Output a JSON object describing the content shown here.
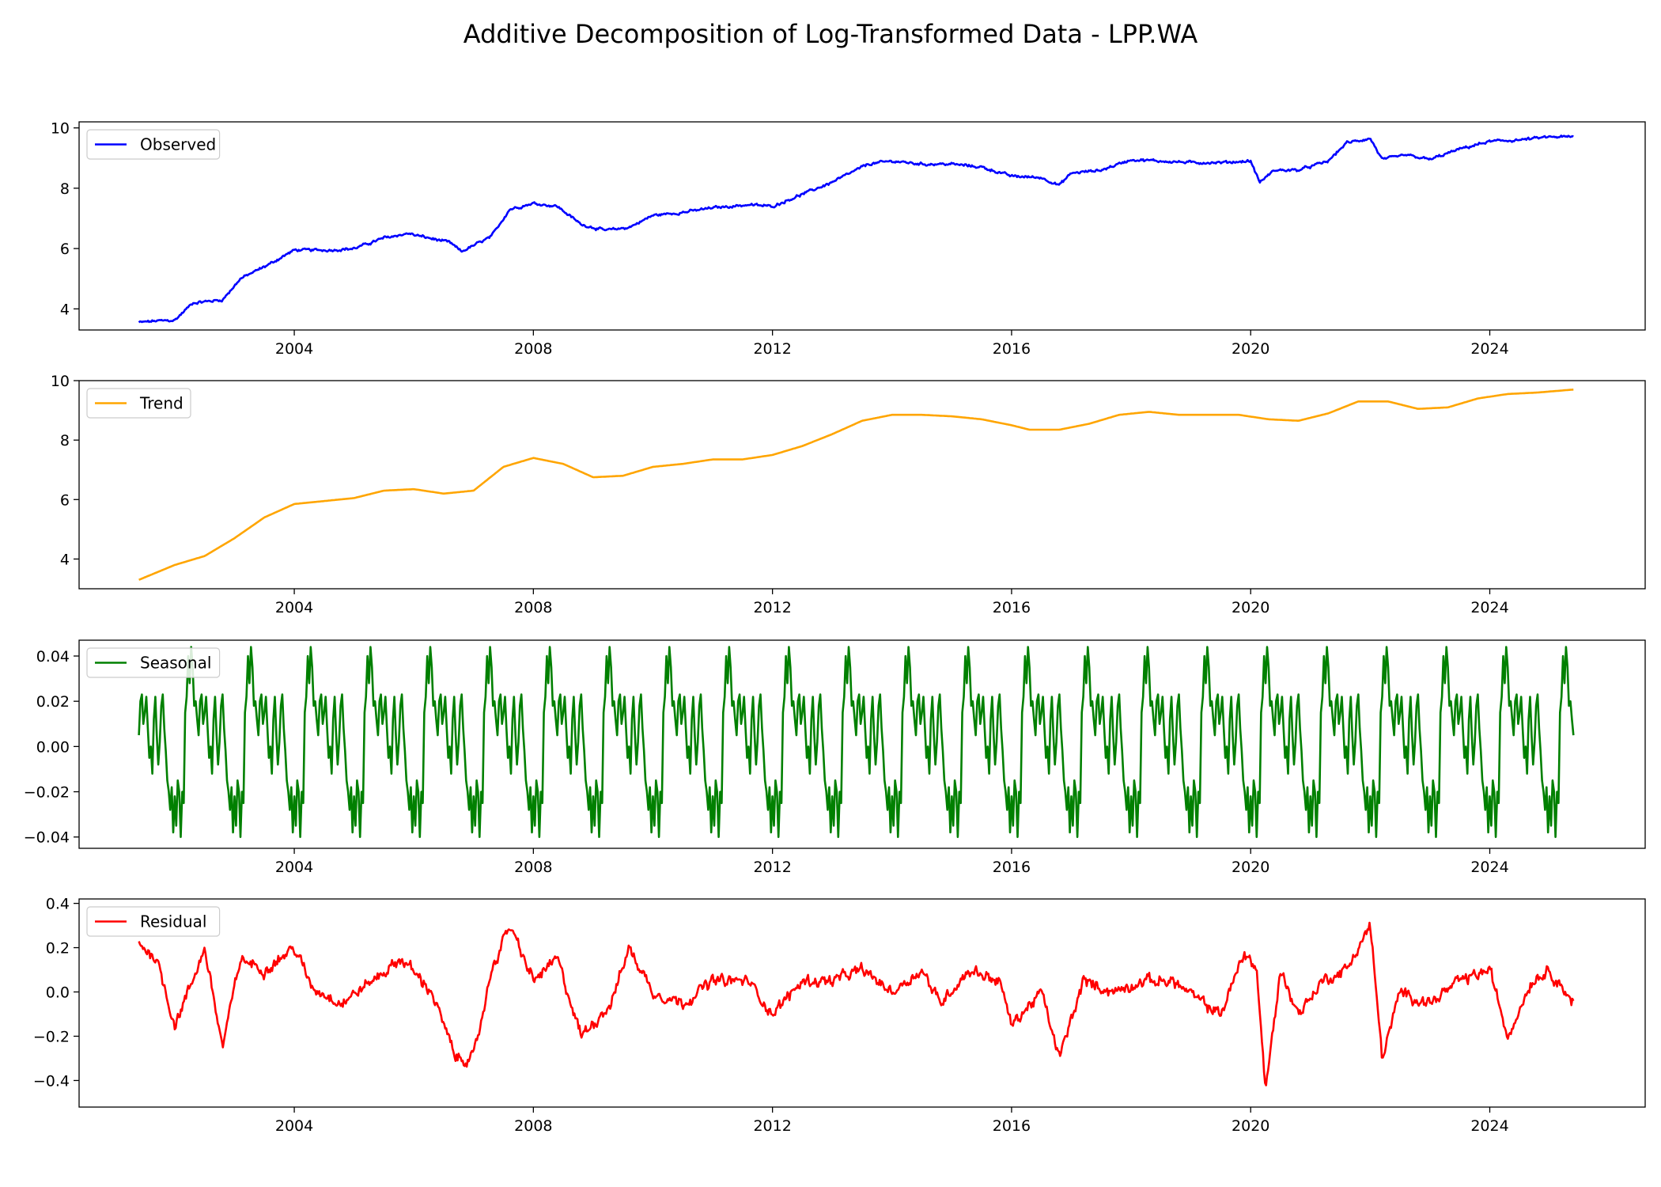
{
  "chart_data": {
    "type": "line",
    "title": "Additive Decomposition of Log-Transformed Data - LPP.WA",
    "x_range": [
      2000.4,
      2026.6
    ],
    "x_ticks": [
      2004,
      2008,
      2012,
      2016,
      2020,
      2024
    ],
    "x_tick_labels": [
      "2004",
      "2008",
      "2012",
      "2016",
      "2020",
      "2024"
    ],
    "grid": false,
    "legend_placement": "upper-left",
    "panels": [
      {
        "name": "Observed",
        "color": "#0000ff",
        "ylim": [
          3.3,
          10.2
        ],
        "y_ticks": [
          4,
          6,
          8,
          10
        ],
        "y_tick_labels": [
          "4",
          "6",
          "8",
          "10"
        ],
        "noise": 0.06,
        "anchors": [
          [
            2001.4,
            3.55
          ],
          [
            2001.7,
            3.6
          ],
          [
            2002.0,
            3.62
          ],
          [
            2002.3,
            4.2
          ],
          [
            2002.8,
            4.3
          ],
          [
            2003.1,
            5.0
          ],
          [
            2003.6,
            5.5
          ],
          [
            2004.0,
            5.95
          ],
          [
            2004.6,
            5.95
          ],
          [
            2005.0,
            6.0
          ],
          [
            2005.5,
            6.35
          ],
          [
            2005.9,
            6.5
          ],
          [
            2006.6,
            6.2
          ],
          [
            2006.8,
            5.9
          ],
          [
            2007.3,
            6.4
          ],
          [
            2007.6,
            7.3
          ],
          [
            2008.0,
            7.5
          ],
          [
            2008.4,
            7.4
          ],
          [
            2008.8,
            6.8
          ],
          [
            2009.2,
            6.6
          ],
          [
            2009.6,
            6.7
          ],
          [
            2010.0,
            7.1
          ],
          [
            2010.5,
            7.2
          ],
          [
            2011.0,
            7.35
          ],
          [
            2011.6,
            7.45
          ],
          [
            2012.0,
            7.4
          ],
          [
            2012.5,
            7.8
          ],
          [
            2013.0,
            8.2
          ],
          [
            2013.6,
            8.8
          ],
          [
            2014.0,
            8.9
          ],
          [
            2014.5,
            8.8
          ],
          [
            2015.0,
            8.8
          ],
          [
            2015.5,
            8.7
          ],
          [
            2016.0,
            8.4
          ],
          [
            2016.5,
            8.35
          ],
          [
            2016.8,
            8.1
          ],
          [
            2017.0,
            8.5
          ],
          [
            2017.5,
            8.6
          ],
          [
            2018.0,
            8.95
          ],
          [
            2018.5,
            8.9
          ],
          [
            2019.0,
            8.85
          ],
          [
            2019.5,
            8.85
          ],
          [
            2020.0,
            8.9
          ],
          [
            2020.15,
            8.2
          ],
          [
            2020.4,
            8.6
          ],
          [
            2020.8,
            8.6
          ],
          [
            2021.3,
            8.9
          ],
          [
            2021.6,
            9.5
          ],
          [
            2022.0,
            9.65
          ],
          [
            2022.2,
            8.95
          ],
          [
            2022.6,
            9.1
          ],
          [
            2023.0,
            8.95
          ],
          [
            2023.5,
            9.3
          ],
          [
            2024.0,
            9.55
          ],
          [
            2024.5,
            9.6
          ],
          [
            2025.0,
            9.7
          ],
          [
            2025.4,
            9.7
          ]
        ]
      },
      {
        "name": "Trend",
        "color": "#ffa500",
        "ylim": [
          3.0,
          10.0
        ],
        "y_ticks": [
          4,
          6,
          8,
          10
        ],
        "y_tick_labels": [
          "4",
          "6",
          "8",
          "10"
        ],
        "noise": 0,
        "anchors": [
          [
            2001.4,
            3.3
          ],
          [
            2002.0,
            3.8
          ],
          [
            2002.5,
            4.1
          ],
          [
            2003.0,
            4.7
          ],
          [
            2003.5,
            5.4
          ],
          [
            2004.0,
            5.85
          ],
          [
            2004.5,
            5.95
          ],
          [
            2005.0,
            6.05
          ],
          [
            2005.5,
            6.3
          ],
          [
            2006.0,
            6.35
          ],
          [
            2006.5,
            6.2
          ],
          [
            2007.0,
            6.3
          ],
          [
            2007.5,
            7.1
          ],
          [
            2008.0,
            7.4
          ],
          [
            2008.5,
            7.2
          ],
          [
            2009.0,
            6.75
          ],
          [
            2009.5,
            6.8
          ],
          [
            2010.0,
            7.1
          ],
          [
            2010.5,
            7.2
          ],
          [
            2011.0,
            7.35
          ],
          [
            2011.5,
            7.35
          ],
          [
            2012.0,
            7.5
          ],
          [
            2012.5,
            7.8
          ],
          [
            2013.0,
            8.2
          ],
          [
            2013.5,
            8.65
          ],
          [
            2014.0,
            8.85
          ],
          [
            2014.5,
            8.85
          ],
          [
            2015.0,
            8.8
          ],
          [
            2015.5,
            8.7
          ],
          [
            2016.0,
            8.5
          ],
          [
            2016.3,
            8.35
          ],
          [
            2016.8,
            8.35
          ],
          [
            2017.3,
            8.55
          ],
          [
            2017.8,
            8.85
          ],
          [
            2018.3,
            8.95
          ],
          [
            2018.8,
            8.85
          ],
          [
            2019.3,
            8.85
          ],
          [
            2019.8,
            8.85
          ],
          [
            2020.3,
            8.7
          ],
          [
            2020.8,
            8.65
          ],
          [
            2021.3,
            8.9
          ],
          [
            2021.8,
            9.3
          ],
          [
            2022.3,
            9.3
          ],
          [
            2022.8,
            9.05
          ],
          [
            2023.3,
            9.1
          ],
          [
            2023.8,
            9.4
          ],
          [
            2024.3,
            9.55
          ],
          [
            2024.8,
            9.6
          ],
          [
            2025.4,
            9.7
          ]
        ]
      },
      {
        "name": "Seasonal",
        "color": "#008000",
        "ylim": [
          -0.045,
          0.047
        ],
        "y_ticks": [
          -0.04,
          -0.02,
          0.0,
          0.02,
          0.04
        ],
        "y_tick_labels": [
          "−0.04",
          "−0.02",
          "0.00",
          "0.02",
          "0.04"
        ],
        "noise": 0,
        "period": 1.0,
        "cycle_start": 2001.4,
        "cycle_end": 2025.4,
        "cycle": [
          0.005,
          0.02,
          0.023,
          0.01,
          0.015,
          0.022,
          0.008,
          -0.005,
          0.0,
          -0.012,
          0.012,
          0.022,
          0.005,
          -0.008,
          0.002,
          0.018,
          0.023,
          0.008,
          -0.002,
          -0.015,
          -0.02,
          -0.028,
          -0.018,
          -0.038,
          -0.022,
          -0.035,
          -0.015,
          -0.02,
          -0.04,
          -0.02,
          -0.025,
          0.015,
          0.022,
          0.04,
          0.028,
          0.044,
          0.035,
          0.018,
          0.02,
          0.012
        ]
      },
      {
        "name": "Residual",
        "color": "#ff0000",
        "ylim": [
          -0.52,
          0.42
        ],
        "y_ticks": [
          -0.4,
          -0.2,
          0.0,
          0.2,
          0.4
        ],
        "y_tick_labels": [
          "−0.4",
          "−0.2",
          "0.0",
          "0.2",
          "0.4"
        ],
        "noise": 0.035,
        "anchors": [
          [
            2001.4,
            0.22
          ],
          [
            2001.7,
            0.15
          ],
          [
            2002.0,
            -0.15
          ],
          [
            2002.3,
            0.05
          ],
          [
            2002.5,
            0.2
          ],
          [
            2002.8,
            -0.25
          ],
          [
            2003.1,
            0.15
          ],
          [
            2003.5,
            0.1
          ],
          [
            2004.0,
            0.2
          ],
          [
            2004.3,
            0.02
          ],
          [
            2004.8,
            -0.05
          ],
          [
            2005.3,
            0.05
          ],
          [
            2005.8,
            0.15
          ],
          [
            2006.3,
            0.0
          ],
          [
            2006.7,
            -0.3
          ],
          [
            2007.0,
            -0.3
          ],
          [
            2007.3,
            0.1
          ],
          [
            2007.6,
            0.3
          ],
          [
            2008.0,
            0.05
          ],
          [
            2008.4,
            0.15
          ],
          [
            2008.8,
            -0.2
          ],
          [
            2009.3,
            -0.05
          ],
          [
            2009.6,
            0.2
          ],
          [
            2010.0,
            0.0
          ],
          [
            2010.5,
            -0.05
          ],
          [
            2011.0,
            0.05
          ],
          [
            2011.6,
            0.05
          ],
          [
            2012.0,
            -0.1
          ],
          [
            2012.5,
            0.05
          ],
          [
            2013.0,
            0.05
          ],
          [
            2013.5,
            0.1
          ],
          [
            2014.0,
            0.0
          ],
          [
            2014.5,
            0.1
          ],
          [
            2014.8,
            -0.05
          ],
          [
            2015.3,
            0.1
          ],
          [
            2015.8,
            0.05
          ],
          [
            2016.0,
            -0.15
          ],
          [
            2016.5,
            0.0
          ],
          [
            2016.8,
            -0.3
          ],
          [
            2017.2,
            0.05
          ],
          [
            2017.7,
            0.0
          ],
          [
            2018.2,
            0.05
          ],
          [
            2018.7,
            0.05
          ],
          [
            2019.2,
            -0.05
          ],
          [
            2019.5,
            -0.1
          ],
          [
            2019.9,
            0.18
          ],
          [
            2020.1,
            0.1
          ],
          [
            2020.25,
            -0.45
          ],
          [
            2020.5,
            0.1
          ],
          [
            2020.8,
            -0.1
          ],
          [
            2021.2,
            0.05
          ],
          [
            2021.6,
            0.1
          ],
          [
            2022.0,
            0.3
          ],
          [
            2022.2,
            -0.3
          ],
          [
            2022.5,
            0.0
          ],
          [
            2023.0,
            -0.05
          ],
          [
            2023.5,
            0.05
          ],
          [
            2024.0,
            0.1
          ],
          [
            2024.3,
            -0.2
          ],
          [
            2024.7,
            0.05
          ],
          [
            2025.0,
            0.1
          ],
          [
            2025.4,
            -0.05
          ]
        ]
      }
    ]
  }
}
